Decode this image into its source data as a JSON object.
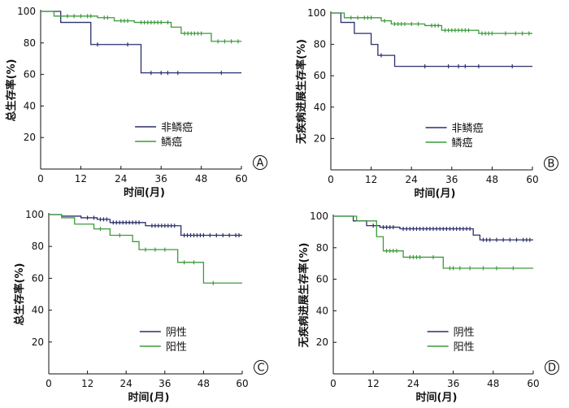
{
  "colors": {
    "navy": "#2a2f6b",
    "green": "#3d9a3d",
    "axis": "#111111"
  },
  "chart_data": [
    {
      "panel": "A",
      "type": "line",
      "title": "",
      "xlabel": "时间(月)",
      "ylabel": "总生存率(%)",
      "xlim": [
        0,
        60
      ],
      "ylim": [
        0,
        100
      ],
      "xticks": [
        "0",
        "12",
        "24",
        "36",
        "48",
        "60"
      ],
      "yticks": [
        "20",
        "40",
        "60",
        "80",
        "100"
      ],
      "legend_position": "bottom-center",
      "series": [
        {
          "name": "非鳞癌",
          "color": "#2a2f6b",
          "steps": [
            [
              0,
              100
            ],
            [
              6,
              93
            ],
            [
              15,
              79
            ],
            [
              30,
              61
            ],
            [
              60,
              61
            ]
          ],
          "censored": [
            [
              17,
              79
            ],
            [
              26,
              79
            ],
            [
              33,
              61
            ],
            [
              36,
              61
            ],
            [
              38,
              61
            ],
            [
              41,
              61
            ],
            [
              54,
              61
            ]
          ]
        },
        {
          "name": "鳞癌",
          "color": "#3d9a3d",
          "steps": [
            [
              0,
              100
            ],
            [
              4,
              97
            ],
            [
              17,
              96
            ],
            [
              22,
              94
            ],
            [
              28,
              93
            ],
            [
              39,
              90
            ],
            [
              42,
              86
            ],
            [
              51,
              81
            ],
            [
              60,
              81
            ]
          ],
          "censored": [
            [
              8,
              97
            ],
            [
              10,
              97
            ],
            [
              12,
              97
            ],
            [
              14,
              97
            ],
            [
              15,
              97
            ],
            [
              19,
              96
            ],
            [
              20,
              96
            ],
            [
              24,
              94
            ],
            [
              25,
              94
            ],
            [
              26,
              94
            ],
            [
              30,
              93
            ],
            [
              31,
              93
            ],
            [
              32,
              93
            ],
            [
              33,
              93
            ],
            [
              34,
              93
            ],
            [
              35,
              93
            ],
            [
              36,
              93
            ],
            [
              38,
              93
            ],
            [
              43,
              86
            ],
            [
              44,
              86
            ],
            [
              45,
              86
            ],
            [
              46,
              86
            ],
            [
              47,
              86
            ],
            [
              48,
              86
            ],
            [
              53,
              81
            ],
            [
              55,
              81
            ],
            [
              57,
              81
            ],
            [
              59,
              81
            ]
          ]
        }
      ]
    },
    {
      "panel": "B",
      "type": "line",
      "title": "",
      "xlabel": "时间(月)",
      "ylabel": "无疾病进展生存率(%)",
      "xlim": [
        0,
        60
      ],
      "ylim": [
        0,
        100
      ],
      "xticks": [
        "0",
        "12",
        "24",
        "36",
        "48",
        "60"
      ],
      "yticks": [
        "20",
        "40",
        "60",
        "80",
        "100"
      ],
      "legend_position": "bottom-center",
      "series": [
        {
          "name": "非鳞癌",
          "color": "#2a2f6b",
          "steps": [
            [
              0,
              100
            ],
            [
              3,
              94
            ],
            [
              7,
              87
            ],
            [
              12,
              80
            ],
            [
              14,
              73
            ],
            [
              19,
              66
            ],
            [
              60,
              66
            ]
          ],
          "censored": [
            [
              15,
              73
            ],
            [
              28,
              66
            ],
            [
              35,
              66
            ],
            [
              38,
              66
            ],
            [
              40,
              66
            ],
            [
              44,
              66
            ],
            [
              54,
              66
            ]
          ]
        },
        {
          "name": "鳞癌",
          "color": "#3d9a3d",
          "steps": [
            [
              0,
              100
            ],
            [
              4,
              97
            ],
            [
              15,
              95
            ],
            [
              18,
              93
            ],
            [
              28,
              92
            ],
            [
              33,
              89
            ],
            [
              44,
              87
            ],
            [
              60,
              87
            ]
          ],
          "censored": [
            [
              6,
              97
            ],
            [
              8,
              97
            ],
            [
              10,
              97
            ],
            [
              11,
              97
            ],
            [
              12,
              97
            ],
            [
              16,
              95
            ],
            [
              19,
              93
            ],
            [
              20,
              93
            ],
            [
              21,
              93
            ],
            [
              22,
              93
            ],
            [
              24,
              93
            ],
            [
              26,
              93
            ],
            [
              30,
              92
            ],
            [
              31,
              92
            ],
            [
              32,
              92
            ],
            [
              34,
              89
            ],
            [
              35,
              89
            ],
            [
              36,
              89
            ],
            [
              37,
              89
            ],
            [
              38,
              89
            ],
            [
              39,
              89
            ],
            [
              40,
              89
            ],
            [
              41,
              89
            ],
            [
              45,
              87
            ],
            [
              46,
              87
            ],
            [
              47,
              87
            ],
            [
              48,
              87
            ],
            [
              52,
              87
            ],
            [
              55,
              87
            ],
            [
              57,
              87
            ],
            [
              59,
              87
            ]
          ]
        }
      ]
    },
    {
      "panel": "C",
      "type": "line",
      "title": "",
      "xlabel": "时间(月)",
      "ylabel": "总生存率(%)",
      "xlim": [
        0,
        60
      ],
      "ylim": [
        0,
        100
      ],
      "xticks": [
        "0",
        "12",
        "24",
        "36",
        "48",
        "60"
      ],
      "yticks": [
        "20",
        "40",
        "60",
        "80",
        "100"
      ],
      "legend_position": "bottom-center",
      "series": [
        {
          "name": "阴性",
          "color": "#2a2f6b",
          "steps": [
            [
              0,
              100
            ],
            [
              4,
              99
            ],
            [
              10,
              98
            ],
            [
              15,
              97
            ],
            [
              19,
              95
            ],
            [
              30,
              93
            ],
            [
              41,
              87
            ],
            [
              60,
              87
            ]
          ],
          "censored": [
            [
              12,
              98
            ],
            [
              14,
              98
            ],
            [
              16,
              97
            ],
            [
              17,
              97
            ],
            [
              18,
              97
            ],
            [
              20,
              95
            ],
            [
              21,
              95
            ],
            [
              22,
              95
            ],
            [
              23,
              95
            ],
            [
              24,
              95
            ],
            [
              25,
              95
            ],
            [
              26,
              95
            ],
            [
              27,
              95
            ],
            [
              28,
              95
            ],
            [
              32,
              93
            ],
            [
              33,
              93
            ],
            [
              34,
              93
            ],
            [
              35,
              93
            ],
            [
              36,
              93
            ],
            [
              37,
              93
            ],
            [
              38,
              93
            ],
            [
              39,
              93
            ],
            [
              42,
              87
            ],
            [
              43,
              87
            ],
            [
              44,
              87
            ],
            [
              45,
              87
            ],
            [
              46,
              87
            ],
            [
              47,
              87
            ],
            [
              48,
              87
            ],
            [
              50,
              87
            ],
            [
              52,
              87
            ],
            [
              54,
              87
            ],
            [
              56,
              87
            ],
            [
              58,
              87
            ],
            [
              59,
              87
            ]
          ]
        },
        {
          "name": "阳性",
          "color": "#3d9a3d",
          "steps": [
            [
              0,
              100
            ],
            [
              4,
              98
            ],
            [
              8,
              94
            ],
            [
              14,
              91
            ],
            [
              19,
              87
            ],
            [
              26,
              83
            ],
            [
              28,
              78
            ],
            [
              40,
              70
            ],
            [
              48,
              57
            ],
            [
              60,
              57
            ]
          ],
          "censored": [
            [
              16,
              91
            ],
            [
              22,
              87
            ],
            [
              30,
              78
            ],
            [
              33,
              78
            ],
            [
              36,
              78
            ],
            [
              42,
              70
            ],
            [
              45,
              70
            ],
            [
              51,
              57
            ]
          ]
        }
      ]
    },
    {
      "panel": "D",
      "type": "line",
      "title": "",
      "xlabel": "时间(月)",
      "ylabel": "无疾病进展生存率(%)",
      "xlim": [
        0,
        60
      ],
      "ylim": [
        0,
        100
      ],
      "xticks": [
        "0",
        "12",
        "24",
        "36",
        "48",
        "60"
      ],
      "yticks": [
        "20",
        "40",
        "60",
        "80",
        "100"
      ],
      "legend_position": "bottom-center",
      "series": [
        {
          "name": "阴性",
          "color": "#2a2f6b",
          "steps": [
            [
              0,
              100
            ],
            [
              6,
              97
            ],
            [
              10,
              94
            ],
            [
              14,
              93
            ],
            [
              20,
              92
            ],
            [
              42,
              88
            ],
            [
              44,
              85
            ],
            [
              60,
              85
            ]
          ],
          "censored": [
            [
              12,
              94
            ],
            [
              15,
              93
            ],
            [
              16,
              93
            ],
            [
              17,
              93
            ],
            [
              18,
              93
            ],
            [
              21,
              92
            ],
            [
              22,
              92
            ],
            [
              23,
              92
            ],
            [
              24,
              92
            ],
            [
              25,
              92
            ],
            [
              26,
              92
            ],
            [
              27,
              92
            ],
            [
              28,
              92
            ],
            [
              29,
              92
            ],
            [
              30,
              92
            ],
            [
              31,
              92
            ],
            [
              32,
              92
            ],
            [
              33,
              92
            ],
            [
              34,
              92
            ],
            [
              35,
              92
            ],
            [
              36,
              92
            ],
            [
              37,
              92
            ],
            [
              38,
              92
            ],
            [
              39,
              92
            ],
            [
              40,
              92
            ],
            [
              41,
              92
            ],
            [
              45,
              85
            ],
            [
              46,
              85
            ],
            [
              47,
              85
            ],
            [
              49,
              85
            ],
            [
              51,
              85
            ],
            [
              53,
              85
            ],
            [
              55,
              85
            ],
            [
              57,
              85
            ],
            [
              58,
              85
            ],
            [
              59,
              85
            ]
          ]
        },
        {
          "name": "阳性",
          "color": "#3d9a3d",
          "steps": [
            [
              0,
              100
            ],
            [
              7,
              97
            ],
            [
              13,
              87
            ],
            [
              15,
              78
            ],
            [
              21,
              74
            ],
            [
              33,
              67
            ],
            [
              60,
              67
            ]
          ],
          "censored": [
            [
              16,
              78
            ],
            [
              17,
              78
            ],
            [
              18,
              78
            ],
            [
              19,
              78
            ],
            [
              23,
              74
            ],
            [
              24,
              74
            ],
            [
              25,
              74
            ],
            [
              26,
              74
            ],
            [
              30,
              74
            ],
            [
              35,
              67
            ],
            [
              36,
              67
            ],
            [
              38,
              67
            ],
            [
              41,
              67
            ],
            [
              45,
              67
            ],
            [
              49,
              67
            ],
            [
              54,
              67
            ]
          ]
        }
      ]
    }
  ]
}
